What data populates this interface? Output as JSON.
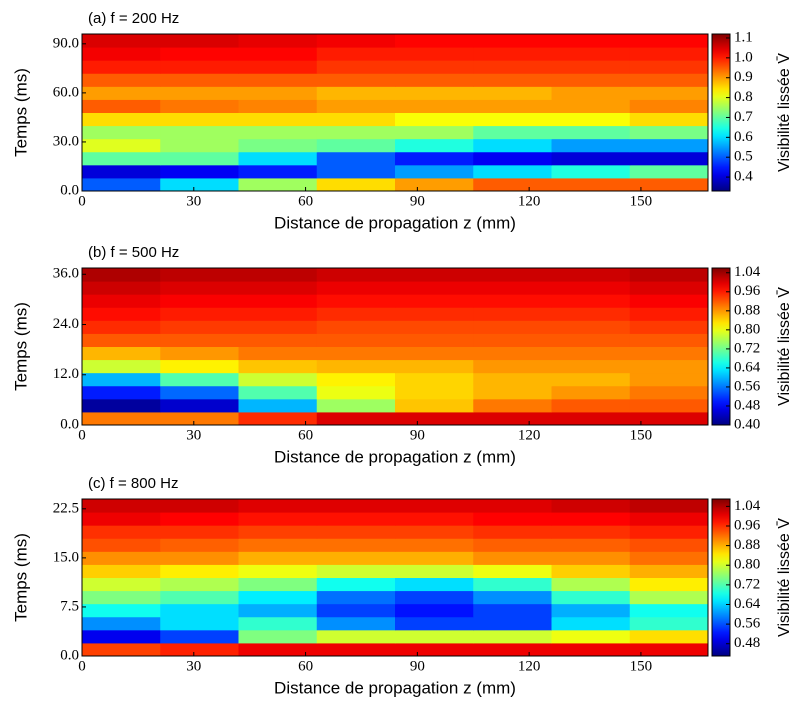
{
  "chart_data": [
    {
      "type": "heatmap",
      "title": "(a) f = 200 Hz",
      "xlabel": "Distance de propagation z (mm)",
      "ylabel": "Temps (ms)",
      "colorbar_label": "Visibilité lissée V̄",
      "colormap": "jet",
      "xlim": [
        0,
        168
      ],
      "ylim": [
        0,
        96
      ],
      "xticks": [
        0,
        30,
        60,
        90,
        120,
        150
      ],
      "yticks": [
        {
          "value": 0,
          "label": "0.0"
        },
        {
          "value": 30,
          "label": "30.0"
        },
        {
          "value": 60,
          "label": "60.0"
        },
        {
          "value": 90,
          "label": "90.0"
        }
      ],
      "clim": [
        0.33,
        1.12
      ],
      "cticks": [
        0.4,
        0.5,
        0.6,
        0.7,
        0.8,
        0.9,
        {
          "value": 1,
          "label": "1.0"
        },
        1.1
      ],
      "xbins": [
        0,
        21,
        42,
        63,
        84,
        105,
        126,
        147,
        168
      ],
      "ybins": [
        0,
        8,
        16,
        24,
        32,
        40,
        48,
        56,
        64,
        72,
        80,
        88,
        96
      ],
      "values": [
        [
          0.5,
          0.6,
          0.75,
          0.85,
          0.9,
          0.95,
          0.95,
          0.95
        ],
        [
          0.4,
          0.42,
          0.45,
          0.5,
          0.55,
          0.6,
          0.65,
          0.7
        ],
        [
          0.7,
          0.7,
          0.6,
          0.5,
          0.45,
          0.42,
          0.4,
          0.4
        ],
        [
          0.8,
          0.75,
          0.72,
          0.7,
          0.65,
          0.6,
          0.55,
          0.55
        ],
        [
          0.75,
          0.75,
          0.75,
          0.75,
          0.75,
          0.7,
          0.7,
          0.72
        ],
        [
          0.85,
          0.85,
          0.85,
          0.85,
          0.82,
          0.82,
          0.82,
          0.85
        ],
        [
          0.95,
          0.93,
          0.92,
          0.9,
          0.9,
          0.9,
          0.9,
          0.92
        ],
        [
          0.9,
          0.9,
          0.9,
          0.88,
          0.88,
          0.88,
          0.9,
          0.9
        ],
        [
          0.95,
          0.95,
          0.95,
          0.95,
          0.95,
          0.95,
          0.95,
          0.95
        ],
        [
          1.0,
          1.0,
          1.0,
          0.98,
          0.98,
          0.98,
          0.98,
          0.98
        ],
        [
          1.03,
          1.02,
          1.02,
          1.0,
          1.0,
          1.0,
          1.0,
          1.0
        ],
        [
          1.05,
          1.05,
          1.04,
          1.03,
          1.02,
          1.02,
          1.02,
          1.02
        ]
      ]
    },
    {
      "type": "heatmap",
      "title": "(b) f = 500 Hz",
      "xlabel": "Distance de propagation z (mm)",
      "ylabel": "Temps (ms)",
      "colorbar_label": "Visibilité lissée V̄",
      "colormap": "jet",
      "xlim": [
        0,
        168
      ],
      "ylim": [
        0,
        37.5
      ],
      "xticks": [
        0,
        30,
        60,
        90,
        120,
        150
      ],
      "yticks": [
        {
          "value": 0,
          "label": "0.0"
        },
        {
          "value": 12,
          "label": "12.0"
        },
        {
          "value": 24,
          "label": "24.0"
        },
        {
          "value": 36,
          "label": "36.0"
        }
      ],
      "clim": [
        0.4,
        1.06
      ],
      "cticks": [
        {
          "value": 0.4,
          "label": "0.40"
        },
        0.48,
        0.56,
        0.64,
        0.72,
        {
          "value": 0.8,
          "label": "0.80"
        },
        0.88,
        0.96,
        1.04
      ],
      "xbins": [
        0,
        21,
        42,
        63,
        84,
        105,
        126,
        147,
        168
      ],
      "ybins": [
        0,
        3.125,
        6.25,
        9.375,
        12.5,
        15.625,
        18.75,
        21.875,
        25,
        28.125,
        31.25,
        34.375,
        37.5
      ],
      "values": [
        [
          0.9,
          0.9,
          0.95,
          1.0,
          1.0,
          1.0,
          1.0,
          1.0
        ],
        [
          0.42,
          0.45,
          0.6,
          0.75,
          0.85,
          0.9,
          0.92,
          0.92
        ],
        [
          0.5,
          0.55,
          0.7,
          0.8,
          0.84,
          0.86,
          0.88,
          0.9
        ],
        [
          0.6,
          0.7,
          0.78,
          0.82,
          0.84,
          0.86,
          0.86,
          0.88
        ],
        [
          0.78,
          0.82,
          0.85,
          0.86,
          0.86,
          0.88,
          0.88,
          0.88
        ],
        [
          0.86,
          0.88,
          0.9,
          0.9,
          0.9,
          0.9,
          0.9,
          0.9
        ],
        [
          0.92,
          0.92,
          0.92,
          0.92,
          0.92,
          0.92,
          0.92,
          0.92
        ],
        [
          0.95,
          0.94,
          0.94,
          0.93,
          0.93,
          0.93,
          0.93,
          0.94
        ],
        [
          0.97,
          0.96,
          0.96,
          0.95,
          0.95,
          0.95,
          0.95,
          0.96
        ],
        [
          0.99,
          0.98,
          0.98,
          0.97,
          0.97,
          0.97,
          0.97,
          0.98
        ],
        [
          1.01,
          1.0,
          1.0,
          0.99,
          0.99,
          0.99,
          0.99,
          1.0
        ],
        [
          1.03,
          1.02,
          1.02,
          1.01,
          1.01,
          1.01,
          1.01,
          1.02
        ]
      ]
    },
    {
      "type": "heatmap",
      "title": "(c) f = 800 Hz",
      "xlabel": "Distance de propagation z (mm)",
      "ylabel": "Temps (ms)",
      "colorbar_label": "Visibilité lissée V̄",
      "colormap": "jet",
      "xlim": [
        0,
        168
      ],
      "ylim": [
        0,
        24
      ],
      "xticks": [
        0,
        30,
        60,
        90,
        120,
        150
      ],
      "yticks": [
        {
          "value": 0,
          "label": "0.0"
        },
        7.5,
        {
          "value": 15,
          "label": "15.0"
        },
        22.5
      ],
      "clim": [
        0.43,
        1.07
      ],
      "cticks": [
        0.48,
        0.56,
        0.64,
        0.72,
        {
          "value": 0.8,
          "label": "0.80"
        },
        0.88,
        0.96,
        1.04
      ],
      "xbins": [
        0,
        21,
        42,
        63,
        84,
        105,
        126,
        147,
        168
      ],
      "ybins": [
        0,
        2,
        4,
        6,
        8,
        10,
        12,
        14,
        16,
        18,
        20,
        22,
        24
      ],
      "values": [
        [
          0.95,
          0.97,
          1.0,
          1.0,
          1.0,
          1.0,
          1.0,
          1.0
        ],
        [
          0.5,
          0.55,
          0.75,
          0.8,
          0.8,
          0.8,
          0.82,
          0.85
        ],
        [
          0.6,
          0.65,
          0.7,
          0.6,
          0.55,
          0.55,
          0.65,
          0.7
        ],
        [
          0.68,
          0.65,
          0.62,
          0.55,
          0.52,
          0.55,
          0.62,
          0.68
        ],
        [
          0.75,
          0.72,
          0.66,
          0.58,
          0.55,
          0.6,
          0.7,
          0.78
        ],
        [
          0.8,
          0.78,
          0.75,
          0.68,
          0.65,
          0.7,
          0.78,
          0.84
        ],
        [
          0.86,
          0.84,
          0.82,
          0.8,
          0.8,
          0.82,
          0.86,
          0.88
        ],
        [
          0.9,
          0.9,
          0.88,
          0.88,
          0.88,
          0.9,
          0.9,
          0.92
        ],
        [
          0.94,
          0.93,
          0.92,
          0.92,
          0.92,
          0.93,
          0.93,
          0.94
        ],
        [
          0.96,
          0.96,
          0.95,
          0.95,
          0.95,
          0.96,
          0.96,
          0.97
        ],
        [
          1.0,
          0.99,
          0.98,
          0.98,
          0.98,
          0.99,
          0.99,
          1.0
        ],
        [
          1.02,
          1.02,
          1.01,
          1.01,
          1.01,
          1.01,
          1.02,
          1.03
        ]
      ]
    }
  ]
}
